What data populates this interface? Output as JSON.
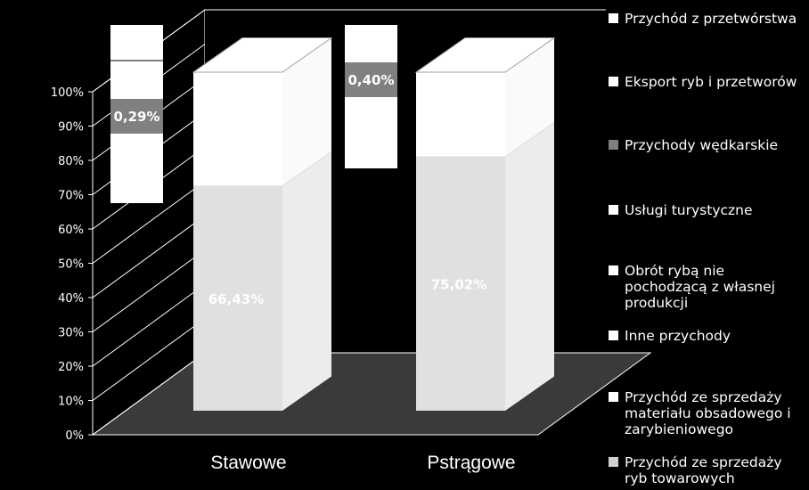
{
  "chart_data": {
    "type": "bar",
    "stacked": true,
    "three_d": true,
    "categories": [
      "Stawowe",
      "Pstrągowe"
    ],
    "yticks": [
      "0%",
      "10%",
      "20%",
      "30%",
      "40%",
      "50%",
      "60%",
      "70%",
      "80%",
      "90%",
      "100%"
    ],
    "ylim": [
      0,
      100
    ],
    "grid": false,
    "legend_position": "right",
    "series": [
      {
        "name": "Przychód ze sprzedaży ryb towarowych",
        "color": "#e0e0e0",
        "values": [
          66.43,
          75.02
        ]
      },
      {
        "name": "Przychód ze sprzedaży materiału obsadowego i zarybieniowego",
        "color": "#ffffff",
        "values": [
          0,
          0
        ]
      },
      {
        "name": "Inne przychody",
        "color": "#ffffff",
        "values": [
          0,
          0
        ]
      },
      {
        "name": "Obrót rybą nie pochodzącą z własnej produkcji",
        "color": "#ffffff",
        "values": [
          0,
          0
        ]
      },
      {
        "name": "Usługi turystyczne",
        "color": "#ffffff",
        "values": [
          0,
          0
        ]
      },
      {
        "name": "Przychody wędkarskie",
        "color": "#808080",
        "values": [
          0.29,
          0.4
        ]
      },
      {
        "name": "Eksport ryb i przetworów",
        "color": "#ffffff",
        "values": [
          0,
          0
        ]
      },
      {
        "name": "Przychód z przetwórstwa",
        "color": "#ffffff",
        "values": [
          0,
          0
        ]
      }
    ],
    "data_labels": [
      {
        "category": "Stawowe",
        "series": "Przychód ze sprzedaży ryb towarowych",
        "text": "66,43%"
      },
      {
        "category": "Pstrągowe",
        "series": "Przychód ze sprzedaży ryb towarowych",
        "text": "75,02%"
      },
      {
        "category": "Stawowe",
        "series": "Przychody wędkarskie",
        "text": "0,29%"
      },
      {
        "category": "Pstrągowe",
        "series": "Przychody wędkarskie",
        "text": "0,40%"
      }
    ]
  },
  "legend": {
    "items": [
      {
        "label": "Przychód z przetwórstwa",
        "color": "#ffffff"
      },
      {
        "label": "Eksport ryb i przetworów",
        "color": "#ffffff"
      },
      {
        "label": "Przychody wędkarskie",
        "color": "#808080"
      },
      {
        "label": "Usługi turystyczne",
        "color": "#ffffff"
      },
      {
        "label": "Obrót rybą nie pochodzącą z własnej produkcji",
        "color": "#ffffff"
      },
      {
        "label": "Inne przychody",
        "color": "#ffffff"
      },
      {
        "label": "Przychód ze sprzedaży materiału obsadowego i zarybieniowego",
        "color": "#ffffff"
      },
      {
        "label": "Przychód ze sprzedaży ryb towarowych",
        "color": "#d0d0d0"
      }
    ]
  }
}
